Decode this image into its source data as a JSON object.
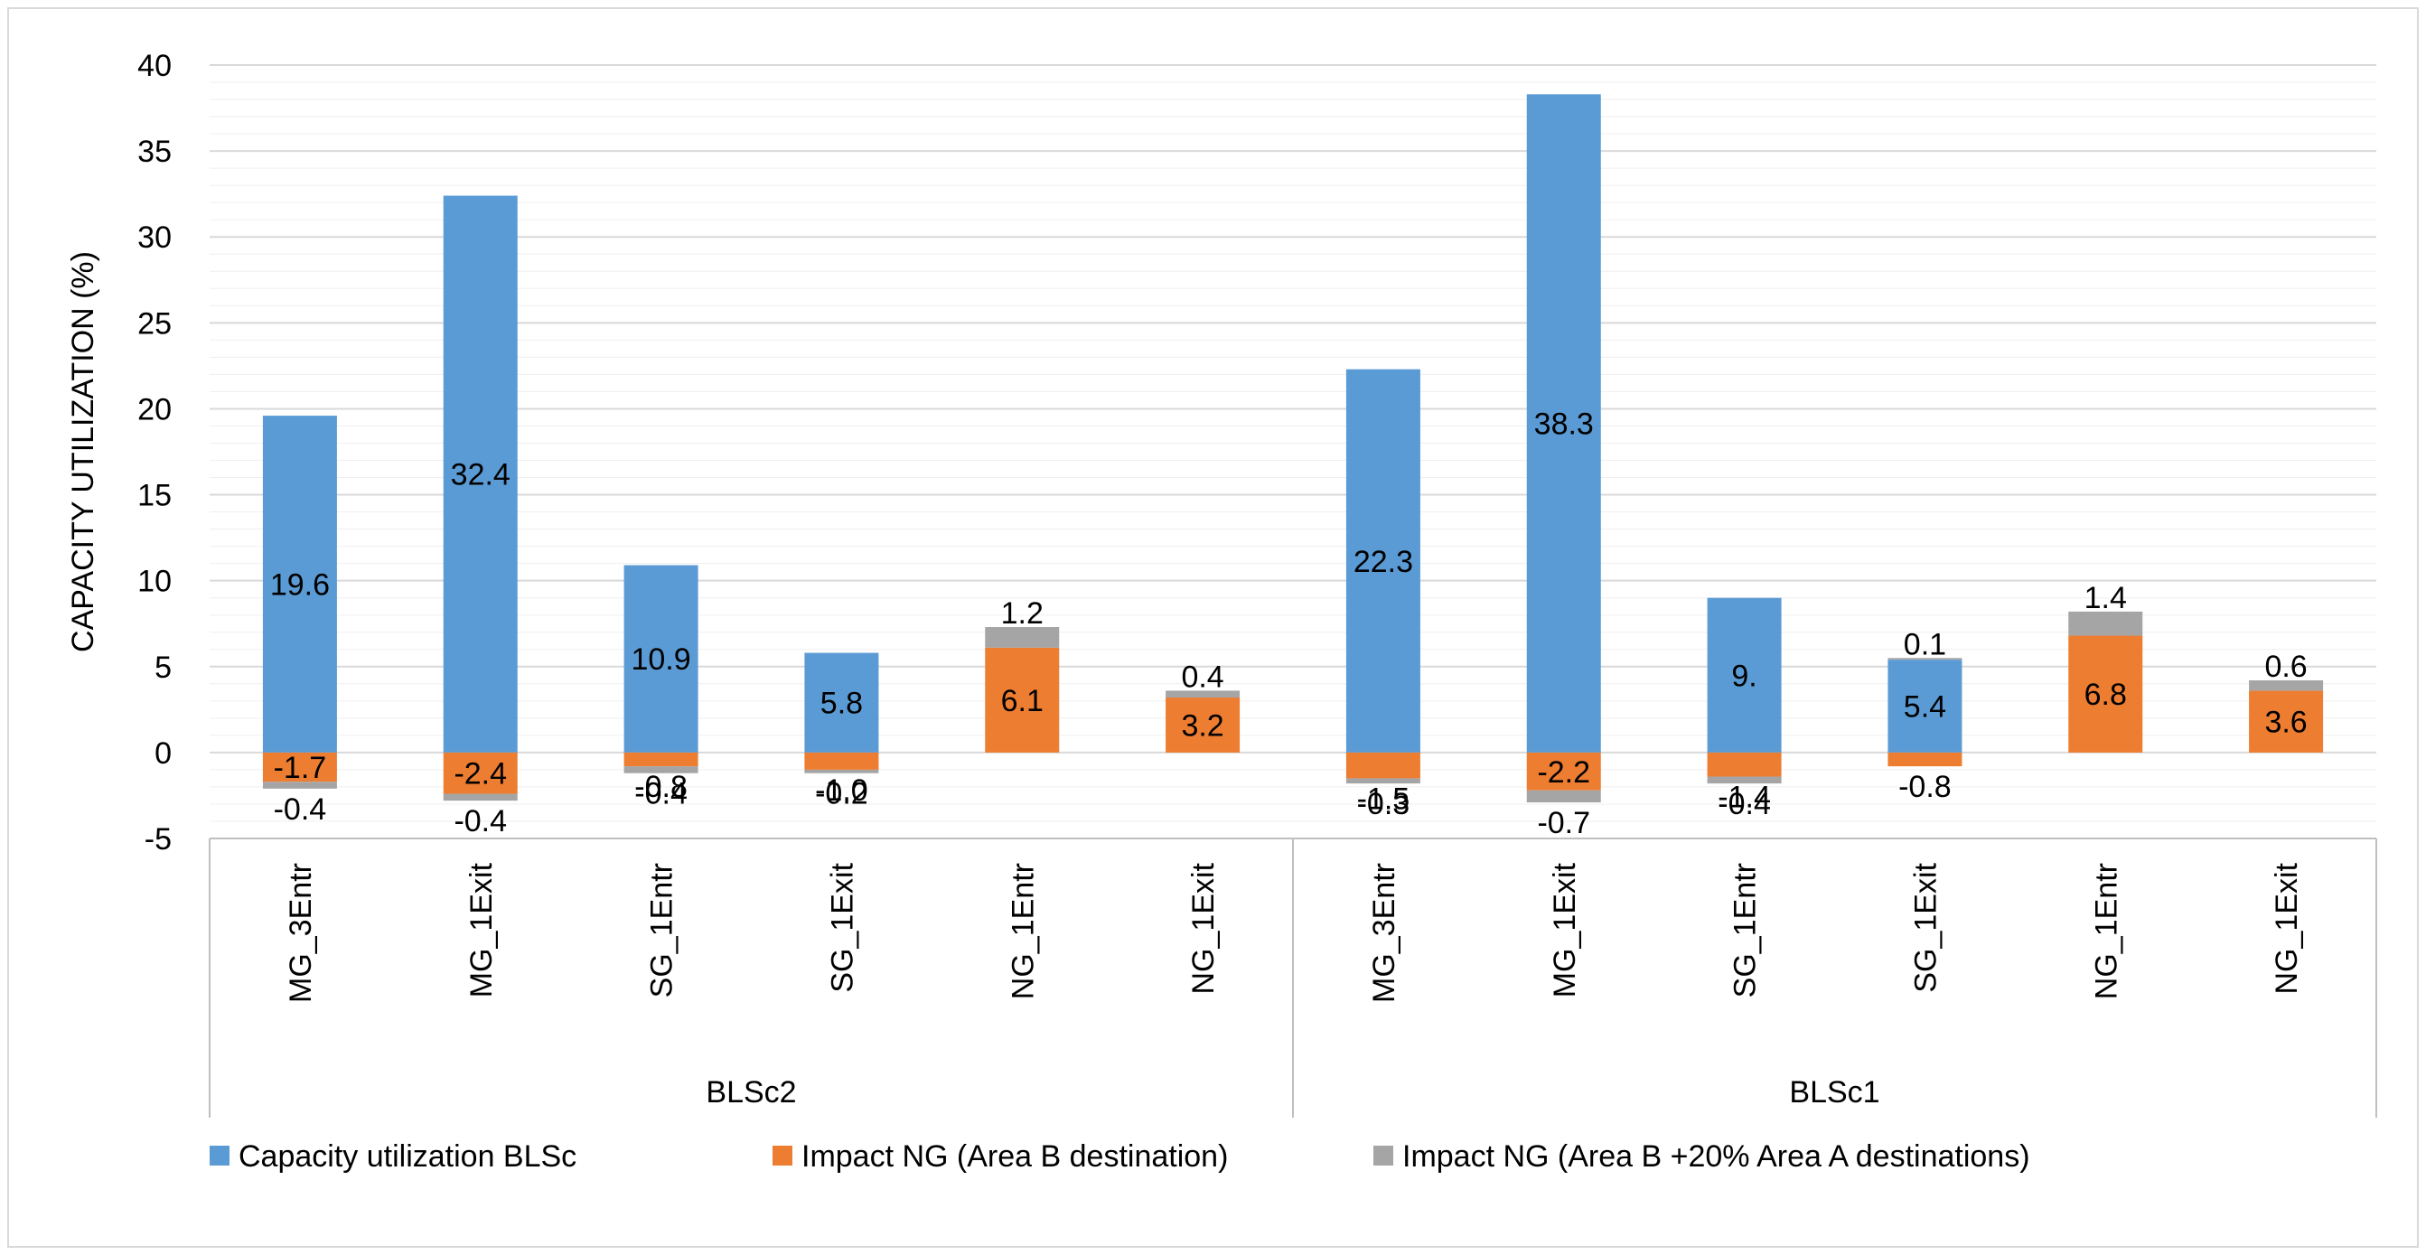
{
  "chart_data": {
    "type": "bar",
    "stacked": true,
    "ylabel": "CAPACITY UTILIZATION (%)",
    "xlabel": "",
    "ylim": [
      -5,
      40
    ],
    "yticks": [
      "-5",
      "0",
      "5",
      "10",
      "15",
      "20",
      "25",
      "30",
      "35",
      "40"
    ],
    "grid": true,
    "legend_position": "bottom",
    "groups": [
      {
        "name": "BLSc2",
        "categories": [
          "MG_3Entr",
          "MG_1Exit",
          "SG_1Entr",
          "SG_1Exit",
          "NG_1Entr",
          "NG_1Exit"
        ]
      },
      {
        "name": "BLSc1",
        "categories": [
          "MG_3Entr",
          "MG_1Exit",
          "SG_1Entr",
          "SG_1Exit",
          "NG_1Entr",
          "NG_1Exit"
        ]
      }
    ],
    "categories": [
      "MG_3Entr",
      "MG_1Exit",
      "SG_1Entr",
      "SG_1Exit",
      "NG_1Entr",
      "NG_1Exit",
      "MG_3Entr",
      "MG_1Exit",
      "SG_1Entr",
      "SG_1Exit",
      "NG_1Entr",
      "NG_1Exit"
    ],
    "series": [
      {
        "name": "Capacity utilization BLSc",
        "color": "#5b9bd5",
        "values": [
          19.6,
          32.4,
          10.9,
          5.8,
          0,
          0,
          22.3,
          38.3,
          9.0,
          5.4,
          0,
          0
        ],
        "labels": [
          "19.6",
          "32.4",
          "10.9",
          "5.8",
          "",
          "",
          "22.3",
          "38.3",
          "9.",
          "5.4",
          "",
          ""
        ]
      },
      {
        "name": "Impact NG (Area B destination)",
        "color": "#ed7d31",
        "values": [
          -1.7,
          -2.4,
          -0.8,
          -1.0,
          6.1,
          3.2,
          -1.5,
          -2.2,
          -1.4,
          -0.8,
          6.8,
          3.6
        ],
        "labels": [
          "-1.7",
          "-2.4",
          "-0.8",
          "-1.0",
          "6.1",
          "3.2",
          "-1.5",
          "-2.2",
          "-1.4",
          "-0.8",
          "6.8",
          "3.6"
        ]
      },
      {
        "name": "Impact NG (Area B +20% Area A destinations)",
        "color": "#a5a5a5",
        "values": [
          -0.4,
          -0.4,
          -0.4,
          -0.2,
          1.2,
          0.4,
          -0.3,
          -0.7,
          -0.4,
          0.1,
          1.4,
          0.6
        ],
        "labels": [
          "-0.4",
          "-0.4",
          "-0.4",
          "-0.2",
          "1.2",
          "0.4",
          "-0.3",
          "-0.7",
          "-0.4",
          "0.1",
          "1.4",
          "0.6"
        ]
      }
    ]
  }
}
